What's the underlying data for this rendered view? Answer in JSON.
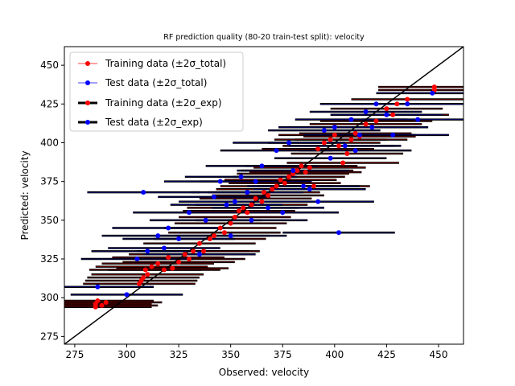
{
  "chart_data": {
    "type": "scatter",
    "title": "RF prediction quality (80-20 train-test split): velocity",
    "xlabel": "Observed: velocity",
    "ylabel": "Predicted: velocity",
    "xlim": [
      270,
      462
    ],
    "ylim": [
      270,
      462
    ],
    "xticks": [
      "275",
      "300",
      "325",
      "350",
      "375",
      "400",
      "425",
      "450"
    ],
    "yticks": [
      "275",
      "300",
      "325",
      "350",
      "375",
      "400",
      "425",
      "450"
    ],
    "grid": false,
    "legend_position": "top-left",
    "legend": [
      {
        "label": "Training data (±2σ_total)",
        "color": "#ff0000",
        "style": "thin-errorbar"
      },
      {
        "label": "Test data (±2σ_total)",
        "color": "#0000ff",
        "style": "thin-errorbar"
      },
      {
        "label": "Training data (±2σ_exp)",
        "color": "#ff0000",
        "style": "thick-errorbar"
      },
      {
        "label": "Test data (±2σ_exp)",
        "color": "#0000ff",
        "style": "thick-errorbar"
      }
    ],
    "reference_line": {
      "label": "y = x",
      "color": "#000000"
    },
    "horizontal_error_half_width": 27,
    "series": [
      {
        "name": "Training data",
        "color": "#ff0000",
        "points": [
          [
            285,
            294
          ],
          [
            285,
            296
          ],
          [
            286,
            298
          ],
          [
            288,
            295
          ],
          [
            290,
            297
          ],
          [
            306,
            309
          ],
          [
            307,
            311
          ],
          [
            308,
            313
          ],
          [
            310,
            315
          ],
          [
            309,
            318
          ],
          [
            312,
            320
          ],
          [
            315,
            322
          ],
          [
            318,
            318
          ],
          [
            320,
            326
          ],
          [
            322,
            319
          ],
          [
            325,
            323
          ],
          [
            328,
            328
          ],
          [
            330,
            325
          ],
          [
            332,
            330
          ],
          [
            335,
            335
          ],
          [
            337,
            330
          ],
          [
            340,
            338
          ],
          [
            342,
            340
          ],
          [
            345,
            345
          ],
          [
            347,
            342
          ],
          [
            350,
            348
          ],
          [
            352,
            352
          ],
          [
            354,
            356
          ],
          [
            356,
            358
          ],
          [
            358,
            355
          ],
          [
            360,
            360
          ],
          [
            362,
            364
          ],
          [
            365,
            362
          ],
          [
            366,
            368
          ],
          [
            368,
            366
          ],
          [
            370,
            370
          ],
          [
            372,
            372
          ],
          [
            374,
            376
          ],
          [
            376,
            374
          ],
          [
            378,
            378
          ],
          [
            380,
            380
          ],
          [
            382,
            382
          ],
          [
            384,
            385
          ],
          [
            386,
            381
          ],
          [
            388,
            384
          ],
          [
            390,
            372
          ],
          [
            392,
            396
          ],
          [
            395,
            400
          ],
          [
            398,
            402
          ],
          [
            400,
            405
          ],
          [
            402,
            398
          ],
          [
            404,
            387
          ],
          [
            406,
            393
          ],
          [
            408,
            402
          ],
          [
            410,
            406
          ],
          [
            412,
            404
          ],
          [
            415,
            412
          ],
          [
            418,
            410
          ],
          [
            420,
            414
          ],
          [
            425,
            422
          ],
          [
            428,
            418
          ],
          [
            430,
            425
          ],
          [
            435,
            428
          ],
          [
            448,
            436
          ],
          [
            448,
            434
          ]
        ]
      },
      {
        "name": "Test data",
        "color": "#0000ff",
        "points": [
          [
            286,
            307
          ],
          [
            300,
            302
          ],
          [
            305,
            325
          ],
          [
            308,
            368
          ],
          [
            310,
            330
          ],
          [
            315,
            340
          ],
          [
            318,
            332
          ],
          [
            320,
            345
          ],
          [
            325,
            338
          ],
          [
            330,
            355
          ],
          [
            335,
            328
          ],
          [
            338,
            350
          ],
          [
            342,
            365
          ],
          [
            345,
            375
          ],
          [
            348,
            360
          ],
          [
            350,
            340
          ],
          [
            352,
            362
          ],
          [
            355,
            378
          ],
          [
            358,
            368
          ],
          [
            360,
            350
          ],
          [
            362,
            375
          ],
          [
            365,
            385
          ],
          [
            368,
            358
          ],
          [
            372,
            395
          ],
          [
            375,
            355
          ],
          [
            378,
            400
          ],
          [
            380,
            382
          ],
          [
            385,
            372
          ],
          [
            388,
            370
          ],
          [
            392,
            362
          ],
          [
            395,
            408
          ],
          [
            398,
            390
          ],
          [
            400,
            410
          ],
          [
            402,
            342
          ],
          [
            405,
            398
          ],
          [
            408,
            415
          ],
          [
            410,
            395
          ],
          [
            412,
            405
          ],
          [
            415,
            420
          ],
          [
            418,
            410
          ],
          [
            420,
            425
          ],
          [
            425,
            418
          ],
          [
            428,
            405
          ],
          [
            435,
            425
          ],
          [
            440,
            415
          ],
          [
            447,
            432
          ]
        ]
      }
    ]
  }
}
